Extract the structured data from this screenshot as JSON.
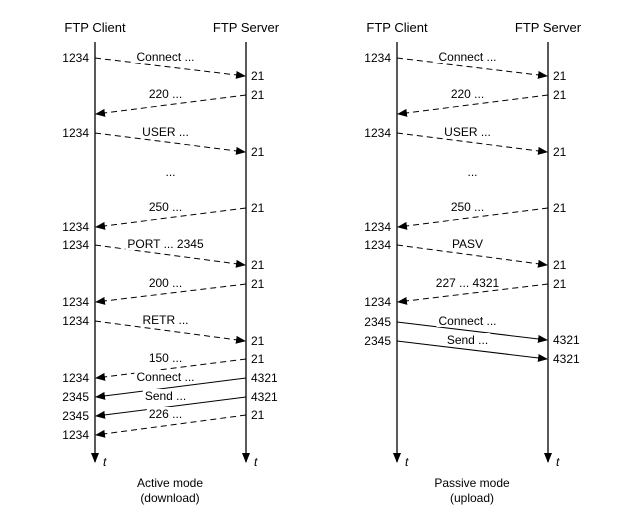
{
  "colors": {
    "line": "#000000",
    "background": "#ffffff"
  },
  "panels": [
    {
      "client_label": "FTP Client",
      "server_label": "FTP Server",
      "time_label": "t",
      "caption": [
        "Active mode",
        "(download)"
      ],
      "messages": [
        {
          "dir": "c2s",
          "style": "dashed",
          "label": "Connect ...",
          "client_port": "1234",
          "server_port": "21"
        },
        {
          "dir": "s2c",
          "style": "dashed",
          "label": "220 ...",
          "client_port": "",
          "server_port": "21"
        },
        {
          "dir": "c2s",
          "style": "dashed",
          "label": "USER ...",
          "client_port": "1234",
          "server_port": "21"
        },
        {
          "dir": "gap",
          "style": "none",
          "label": "...",
          "client_port": "",
          "server_port": ""
        },
        {
          "dir": "s2c",
          "style": "dashed",
          "label": "250 ...",
          "client_port": "1234",
          "server_port": "21"
        },
        {
          "dir": "c2s",
          "style": "dashed",
          "label": "PORT ... 2345",
          "client_port": "1234",
          "server_port": "21"
        },
        {
          "dir": "s2c",
          "style": "dashed",
          "label": "200 ...",
          "client_port": "1234",
          "server_port": "21"
        },
        {
          "dir": "c2s",
          "style": "dashed",
          "label": "RETR ...",
          "client_port": "1234",
          "server_port": "21"
        },
        {
          "dir": "s2c",
          "style": "dashed",
          "label": "150 ...",
          "client_port": "1234",
          "server_port": "21"
        },
        {
          "dir": "s2c",
          "style": "solid",
          "label": "Connect ...",
          "client_port": "2345",
          "server_port": "4321"
        },
        {
          "dir": "s2c",
          "style": "solid",
          "label": "Send ...",
          "client_port": "2345",
          "server_port": "4321"
        },
        {
          "dir": "s2c",
          "style": "dashed",
          "label": "226 ...",
          "client_port": "1234",
          "server_port": "21"
        }
      ]
    },
    {
      "client_label": "FTP Client",
      "server_label": "FTP Server",
      "time_label": "t",
      "caption": [
        "Passive mode",
        "(upload)"
      ],
      "messages": [
        {
          "dir": "c2s",
          "style": "dashed",
          "label": "Connect ...",
          "client_port": "1234",
          "server_port": "21"
        },
        {
          "dir": "s2c",
          "style": "dashed",
          "label": "220 ...",
          "client_port": "",
          "server_port": "21"
        },
        {
          "dir": "c2s",
          "style": "dashed",
          "label": "USER ...",
          "client_port": "1234",
          "server_port": "21"
        },
        {
          "dir": "gap",
          "style": "none",
          "label": "...",
          "client_port": "",
          "server_port": ""
        },
        {
          "dir": "s2c",
          "style": "dashed",
          "label": "250 ...",
          "client_port": "1234",
          "server_port": "21"
        },
        {
          "dir": "c2s",
          "style": "dashed",
          "label": "PASV",
          "client_port": "1234",
          "server_port": "21"
        },
        {
          "dir": "s2c",
          "style": "dashed",
          "label": "227 ... 4321",
          "client_port": "1234",
          "server_port": "21"
        },
        {
          "dir": "c2s",
          "style": "solid",
          "label": "Connect ...",
          "client_port": "2345",
          "server_port": "4321"
        },
        {
          "dir": "c2s",
          "style": "solid",
          "label": "Send ...",
          "client_port": "2345",
          "server_port": "4321"
        }
      ]
    }
  ]
}
